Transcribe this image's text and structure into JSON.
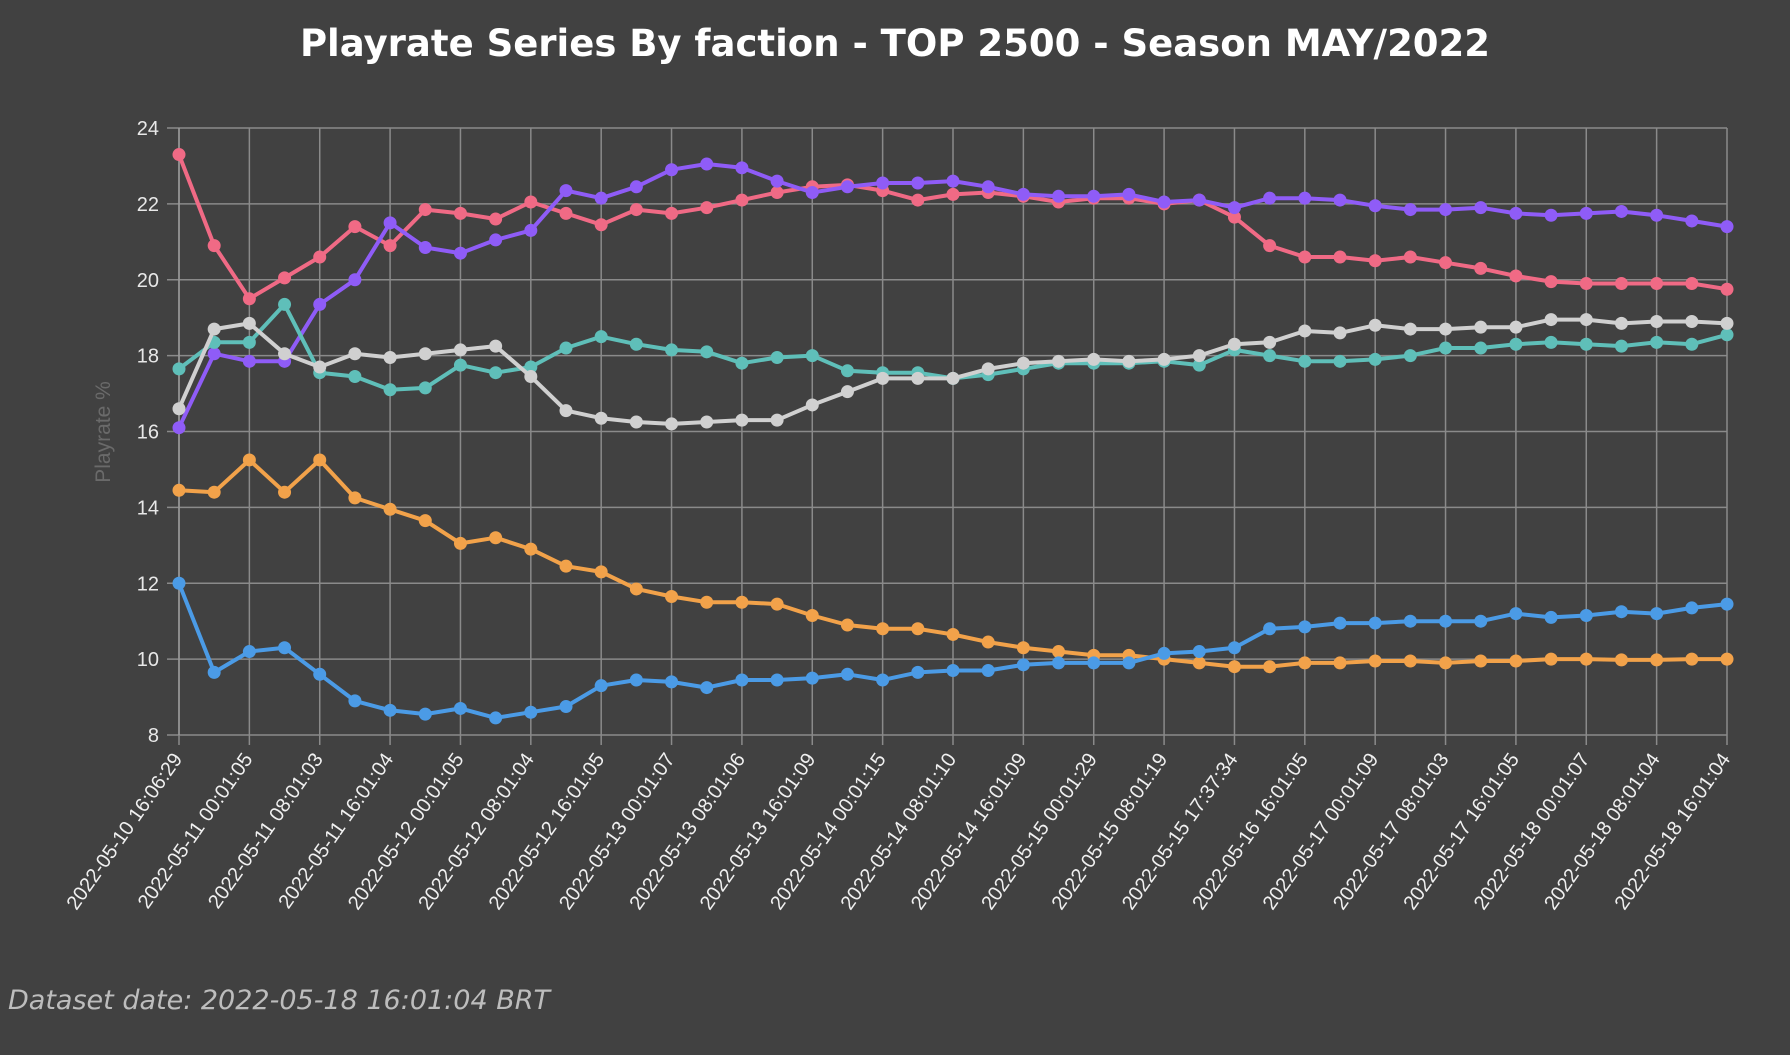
{
  "chart_data": {
    "type": "line",
    "title": "Playrate Series By faction - TOP 2500 - Season MAY/2022",
    "xlabel": "",
    "ylabel": "Playrate %",
    "ylim": [
      8,
      24
    ],
    "yticks": [
      8,
      10,
      12,
      14,
      16,
      18,
      20,
      22,
      24
    ],
    "grid": true,
    "legend": "none",
    "point_count": 45,
    "tick_labels": [
      "2022-05-10 16:06:29",
      "2022-05-11 00:01:05",
      "2022-05-11 08:01:03",
      "2022-05-11 16:01:04",
      "2022-05-12 00:01:05",
      "2022-05-12 08:01:04",
      "2022-05-12 16:01:05",
      "2022-05-13 00:01:07",
      "2022-05-13 08:01:06",
      "2022-05-13 16:01:09",
      "2022-05-14 00:01:15",
      "2022-05-14 08:01:10",
      "2022-05-14 16:01:09",
      "2022-05-15 00:01:29",
      "2022-05-15 08:01:19",
      "2022-05-15 17:37:34",
      "2022-05-16 16:01:05",
      "2022-05-17 00:01:09",
      "2022-05-17 08:01:03",
      "2022-05-17 16:01:05",
      "2022-05-18 00:01:07",
      "2022-05-18 08:01:04",
      "2022-05-18 16:01:04"
    ],
    "series": [
      {
        "name": "pink",
        "color": "#f06a85",
        "values": [
          23.3,
          20.9,
          19.5,
          20.05,
          20.6,
          21.4,
          20.9,
          21.85,
          21.75,
          21.6,
          22.05,
          21.75,
          21.45,
          21.85,
          21.75,
          21.9,
          22.1,
          22.3,
          22.45,
          22.5,
          22.35,
          22.1,
          22.25,
          22.3,
          22.2,
          22.05,
          22.15,
          22.15,
          22.0,
          22.1,
          21.65,
          20.9,
          20.6,
          20.6,
          20.5,
          20.6,
          20.45,
          20.3,
          20.1,
          19.95,
          19.9,
          19.9,
          19.9,
          19.9,
          19.75
        ]
      },
      {
        "name": "purple",
        "color": "#8f5cf7",
        "values": [
          16.1,
          18.05,
          17.85,
          17.85,
          19.35,
          20.0,
          21.5,
          20.85,
          20.7,
          21.05,
          21.3,
          22.35,
          22.15,
          22.45,
          22.9,
          23.05,
          22.95,
          22.6,
          22.3,
          22.45,
          22.55,
          22.55,
          22.6,
          22.45,
          22.25,
          22.2,
          22.2,
          22.25,
          22.05,
          22.1,
          21.9,
          22.15,
          22.15,
          22.1,
          21.95,
          21.85,
          21.85,
          21.9,
          21.75,
          21.7,
          21.75,
          21.8,
          21.7,
          21.55,
          21.4
        ]
      },
      {
        "name": "teal",
        "color": "#5fbfb9",
        "values": [
          17.65,
          18.35,
          18.35,
          19.35,
          17.55,
          17.45,
          17.1,
          17.15,
          17.75,
          17.55,
          17.7,
          18.2,
          18.5,
          18.3,
          18.15,
          18.1,
          17.8,
          17.95,
          18.0,
          17.6,
          17.55,
          17.55,
          17.4,
          17.5,
          17.65,
          17.8,
          17.8,
          17.8,
          17.85,
          17.75,
          18.15,
          18.0,
          17.85,
          17.85,
          17.9,
          18.0,
          18.2,
          18.2,
          18.3,
          18.35,
          18.3,
          18.25,
          18.35,
          18.3,
          18.55
        ]
      },
      {
        "name": "gray",
        "color": "#d0d0d0",
        "values": [
          16.6,
          18.7,
          18.85,
          18.05,
          17.7,
          18.05,
          17.95,
          18.05,
          18.15,
          18.25,
          17.45,
          16.55,
          16.35,
          16.25,
          16.2,
          16.25,
          16.3,
          16.3,
          16.7,
          17.05,
          17.4,
          17.4,
          17.4,
          17.65,
          17.8,
          17.85,
          17.9,
          17.85,
          17.9,
          18.0,
          18.3,
          18.35,
          18.65,
          18.6,
          18.8,
          18.7,
          18.7,
          18.75,
          18.75,
          18.95,
          18.95,
          18.85,
          18.9,
          18.9,
          18.85
        ]
      },
      {
        "name": "orange",
        "color": "#f2a24a",
        "values": [
          14.45,
          14.4,
          15.25,
          14.4,
          15.25,
          14.25,
          13.95,
          13.65,
          13.05,
          13.2,
          12.9,
          12.45,
          12.3,
          11.85,
          11.65,
          11.5,
          11.5,
          11.45,
          11.15,
          10.9,
          10.8,
          10.8,
          10.65,
          10.45,
          10.3,
          10.2,
          10.1,
          10.1,
          10.0,
          9.9,
          9.8,
          9.8,
          9.9,
          9.9,
          9.95,
          9.95,
          9.9,
          9.95,
          9.95,
          10.0,
          10.0,
          9.98,
          9.98,
          10.0,
          10.0
        ]
      },
      {
        "name": "blue",
        "color": "#4b9be6",
        "values": [
          12.0,
          9.65,
          10.2,
          10.3,
          9.6,
          8.9,
          8.65,
          8.55,
          8.7,
          8.45,
          8.6,
          8.75,
          9.3,
          9.45,
          9.4,
          9.25,
          9.45,
          9.45,
          9.5,
          9.6,
          9.45,
          9.65,
          9.7,
          9.7,
          9.85,
          9.9,
          9.9,
          9.9,
          10.15,
          10.2,
          10.3,
          10.8,
          10.85,
          10.95,
          10.95,
          11.0,
          11.0,
          11.0,
          11.2,
          11.1,
          11.15,
          11.25,
          11.2,
          11.35,
          11.45
        ]
      }
    ]
  },
  "footer": {
    "dataset_date": "Dataset date: 2022-05-18 16:01:04 BRT"
  }
}
